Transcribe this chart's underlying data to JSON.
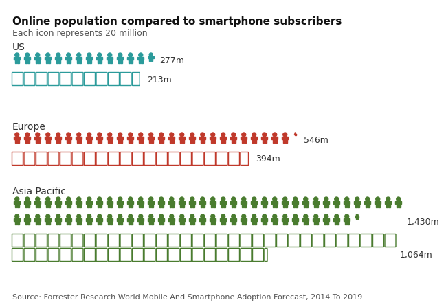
{
  "title": "Online population compared to smartphone subscribers",
  "subtitle": "Each icon represents 20 million",
  "source": "Source: Forrester Research World Mobile And Smartphone Adoption Forecast, 2014 To 2019",
  "regions": [
    {
      "name": "US",
      "color": "#2B9B9B",
      "people_value": 277,
      "phone_value": 213,
      "people_label": "277m",
      "phone_label": "213m"
    },
    {
      "name": "Europe",
      "color": "#C0392B",
      "people_value": 546,
      "phone_value": 394,
      "people_label": "546m",
      "phone_label": "394m"
    },
    {
      "name": "Asia Pacific",
      "color": "#4A7C2F",
      "people_value": 1430,
      "phone_value": 1064,
      "people_label": "1,430m",
      "phone_label": "1,064m"
    }
  ],
  "icon_represents": 20,
  "bg_color": "#FFFFFF",
  "title_fontsize": 11,
  "subtitle_fontsize": 9,
  "label_fontsize": 9,
  "region_fontsize": 10,
  "source_fontsize": 8
}
